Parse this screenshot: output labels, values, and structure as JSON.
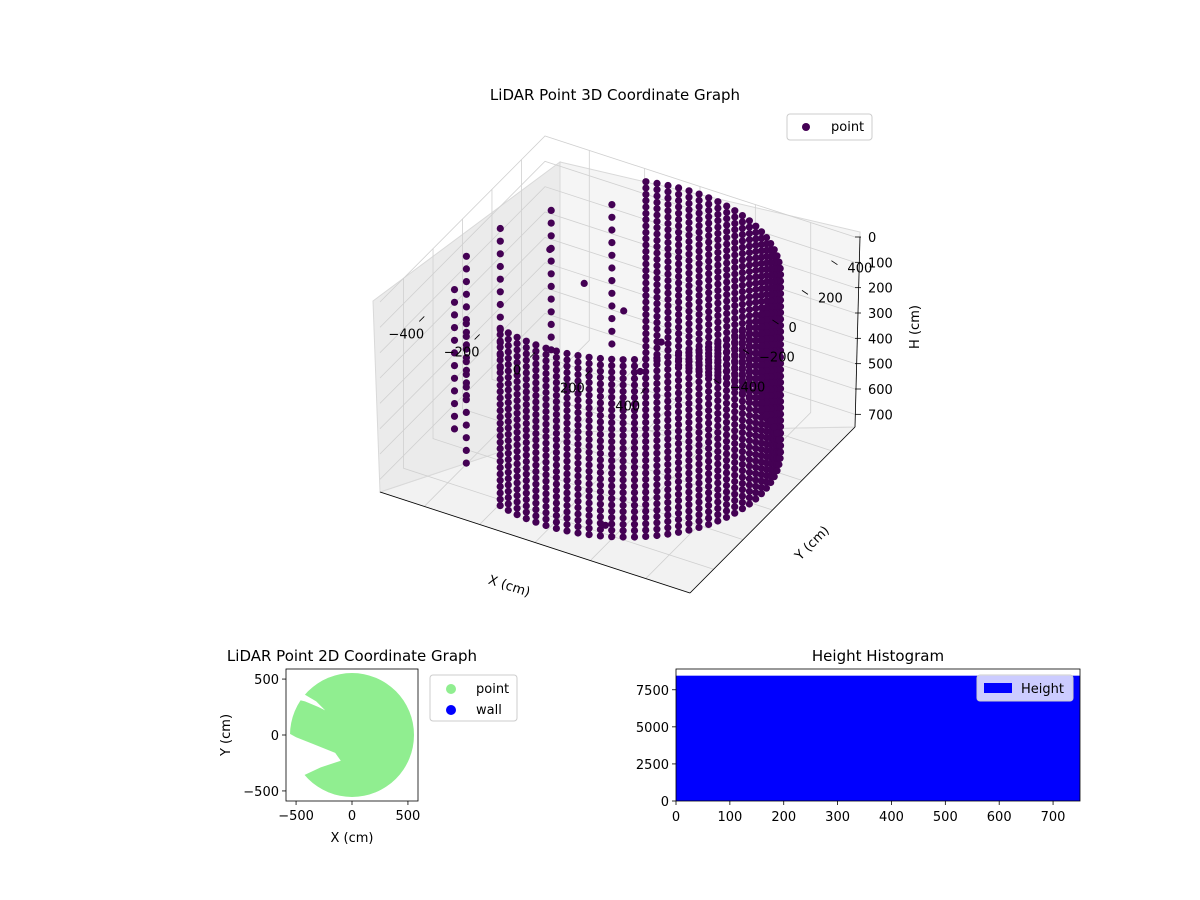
{
  "figure": {
    "background": "#ffffff"
  },
  "chart_data": [
    {
      "type": "scatter",
      "projection": "3d",
      "title": "LiDAR Point 3D Coordinate Graph",
      "xlabel": "X (cm)",
      "ylabel": "Y (cm)",
      "zlabel": "H (cm)",
      "xticks": [
        -400,
        -200,
        0,
        200,
        400
      ],
      "yticks": [
        -400,
        -200,
        0,
        200,
        400
      ],
      "zticks": [
        0,
        100,
        200,
        300,
        400,
        500,
        600,
        700
      ],
      "xlim": [
        -560,
        560
      ],
      "ylim": [
        -560,
        560
      ],
      "zlim": [
        0,
        750
      ],
      "z_inverted": true,
      "grid": true,
      "legend": {
        "placement": "upper-right",
        "entries": [
          "point"
        ]
      },
      "series": [
        {
          "name": "point",
          "color": "#440154",
          "shape": "cylindrical wall of points",
          "radius_cm": 520,
          "height_range": [
            0,
            700
          ],
          "opening_angle_deg": [
            110,
            250
          ],
          "outlier_points": [
            {
              "x": -500,
              "y": 480,
              "h": 380
            },
            {
              "x": -280,
              "y": 300,
              "h": 330
            },
            {
              "x": -180,
              "y": 380,
              "h": 450
            },
            {
              "x": 50,
              "y": 60,
              "h": 420
            },
            {
              "x": 110,
              "y": 90,
              "h": 300
            },
            {
              "x": 180,
              "y": -420,
              "h": 700
            }
          ]
        }
      ]
    },
    {
      "type": "scatter",
      "title": "LiDAR Point 2D Coordinate Graph",
      "xlabel": "X (cm)",
      "ylabel": "Y (cm)",
      "xticks": [
        -500,
        0,
        500
      ],
      "yticks": [
        -500,
        0,
        500
      ],
      "xlim": [
        -590,
        590
      ],
      "ylim": [
        -590,
        590
      ],
      "legend": {
        "placement": "outside-right",
        "entries": [
          "point",
          "wall"
        ]
      },
      "series": [
        {
          "name": "point",
          "color": "#90ee90",
          "region": "disk of radius ~560 cm with gaps on the left side",
          "gap_polygons": [
            [
              [
                -590,
                400
              ],
              [
                -420,
                360
              ],
              [
                -320,
                300
              ],
              [
                -240,
                220
              ],
              [
                -300,
                250
              ],
              [
                -420,
                300
              ],
              [
                -500,
                320
              ],
              [
                -590,
                380
              ]
            ],
            [
              [
                -590,
                30
              ],
              [
                -500,
                -20
              ],
              [
                -350,
                -80
              ],
              [
                -150,
                -160
              ],
              [
                -100,
                -230
              ],
              [
                -280,
                -290
              ],
              [
                -430,
                -360
              ],
              [
                -520,
                -330
              ],
              [
                -590,
                -200
              ]
            ]
          ]
        },
        {
          "name": "wall",
          "color": "#0000ff",
          "points": []
        }
      ]
    },
    {
      "type": "bar",
      "subtype": "histogram",
      "title": "Height Histogram",
      "xticks": [
        0,
        100,
        200,
        300,
        400,
        500,
        600,
        700
      ],
      "yticks": [
        0,
        2500,
        5000,
        7500
      ],
      "xlim": [
        0,
        750
      ],
      "ylim": [
        0,
        8900
      ],
      "legend": {
        "placement": "upper-right",
        "entries": [
          "Height"
        ]
      },
      "series": [
        {
          "name": "Height",
          "color": "#0000ff",
          "bins": [
            [
              0,
              750
            ]
          ],
          "values": [
            8450
          ]
        }
      ]
    }
  ]
}
